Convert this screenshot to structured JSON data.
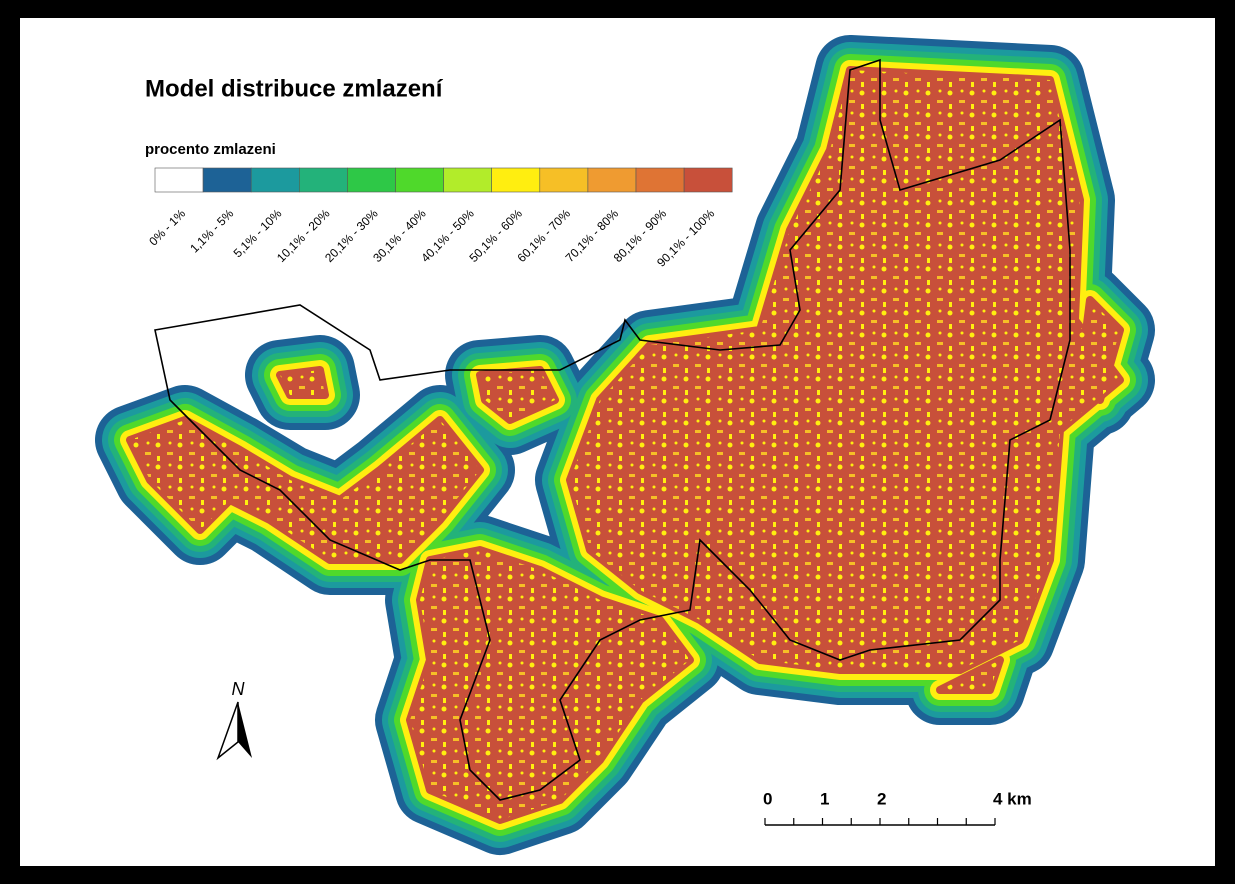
{
  "title": "Model distribuce zmlazení",
  "legend": {
    "title": "procento zmlazeni",
    "classes": [
      {
        "label": "0% - 1%",
        "color": "#ffffff"
      },
      {
        "label": "1,1% - 5%",
        "color": "#1d6296"
      },
      {
        "label": "5,1% - 10%",
        "color": "#1c9a9e"
      },
      {
        "label": "10,1% - 20%",
        "color": "#23b27a"
      },
      {
        "label": "20,1% - 30%",
        "color": "#2ec847"
      },
      {
        "label": "30,1% - 40%",
        "color": "#4fd92b"
      },
      {
        "label": "40,1% - 50%",
        "color": "#b2ec2a"
      },
      {
        "label": "50,1% - 60%",
        "color": "#ffee10"
      },
      {
        "label": "60,1% - 70%",
        "color": "#f6bf26"
      },
      {
        "label": "70,1% - 80%",
        "color": "#ef9b31"
      },
      {
        "label": "80,1% - 90%",
        "color": "#df7434"
      },
      {
        "label": "90,1% - 100%",
        "color": "#c8503a"
      }
    ]
  },
  "north_arrow": "N",
  "scale_bar": {
    "labels": [
      "0",
      "1",
      "2",
      "4 km"
    ]
  }
}
